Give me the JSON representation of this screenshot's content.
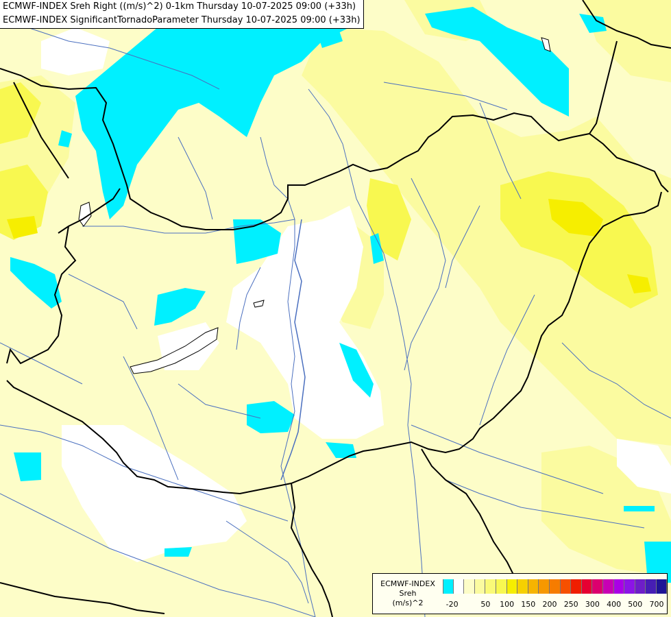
{
  "titles": {
    "line1": "ECMWF-INDEX Sreh Right ((m/s)^2) 0-1km Thursday 10-07-2025 09:00 (+33h)",
    "line2": "ECMWF-INDEX SignificantTornadoParameter Thursday 10-07-2025 09:00 (+33h)"
  },
  "legend": {
    "source": "ECMWF-INDEX",
    "variable": "Sreh",
    "unit": "(m/s)^2",
    "colors": [
      "#00f0ff",
      "#ffffff",
      "#fdfdc8",
      "#fbfba0",
      "#fafa78",
      "#f8f850",
      "#f6ee00",
      "#f6d000",
      "#f6b400",
      "#f69800",
      "#f67c00",
      "#f65000",
      "#f01e00",
      "#e60032",
      "#dc006e",
      "#c800b4",
      "#aa00e6",
      "#8c14e6",
      "#6e1ec8",
      "#461eb4",
      "#1e1496"
    ],
    "ticks": [
      "-20",
      "50",
      "100",
      "150",
      "200",
      "250",
      "300",
      "400",
      "500",
      "700"
    ]
  },
  "map": {
    "colors": {
      "background": "#fdfdc8",
      "negative": "#00f0ff",
      "neutral": "#ffffff",
      "light_yellow": "#fbfba0",
      "yellow": "#f8f850",
      "strong_yellow": "#f6ee00",
      "border": "#000000",
      "river": "#4a6fbf"
    }
  }
}
